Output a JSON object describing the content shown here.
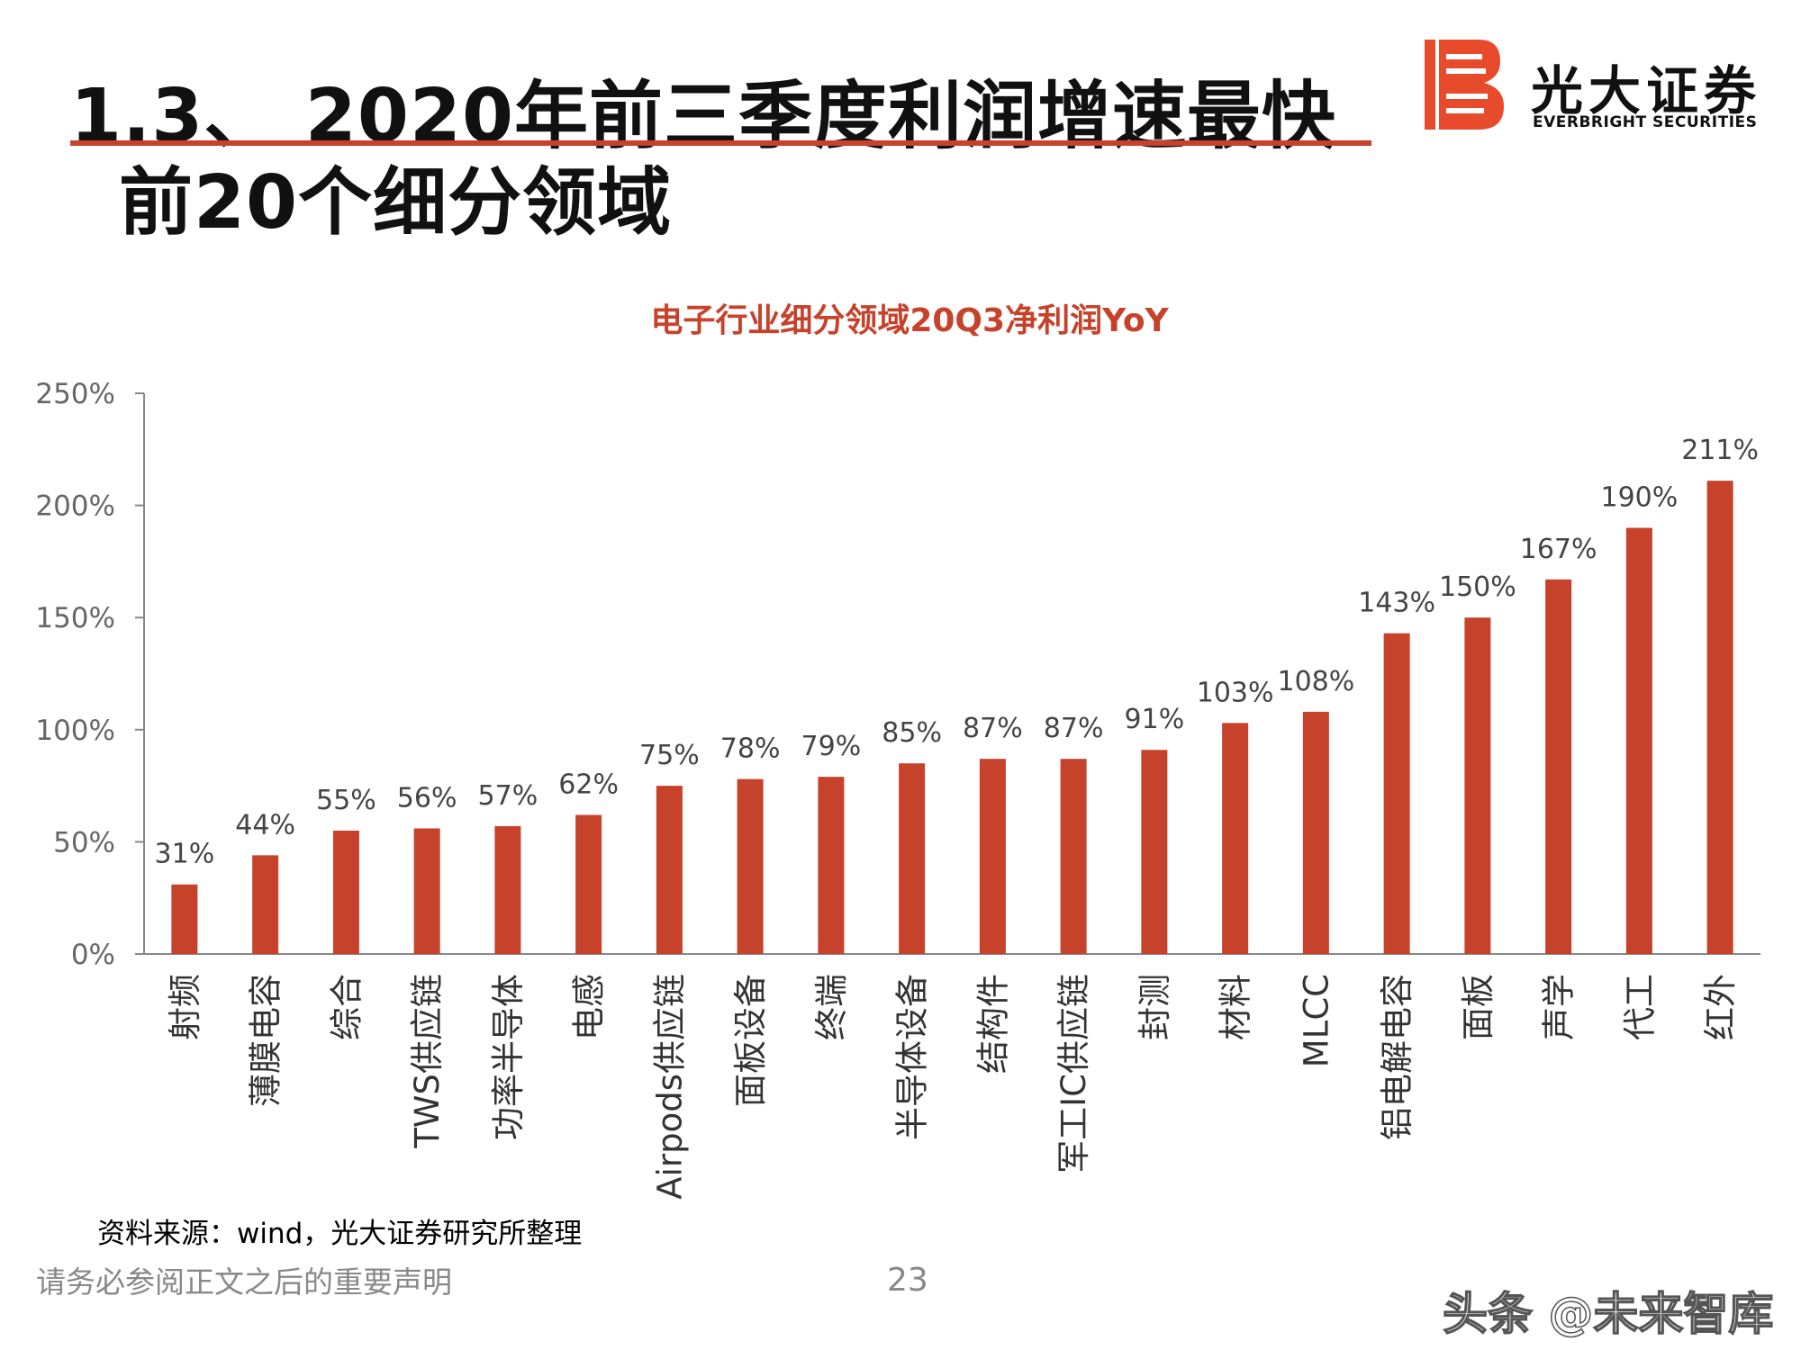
{
  "slide": {
    "title_line1": "1.3、 2020年前三季度利润增速最快",
    "title_line2": "前20个细分领域",
    "logo_cn": "光大证券",
    "logo_en": "EVERBRIGHT SECURITIES",
    "source": "资料来源：wind，光大证券研究所整理",
    "disclaimer": "请务必参阅正文之后的重要声明",
    "page_number": "23",
    "watermark": "头条 @未来智库",
    "accent_color": "#c6422a",
    "bar_color": "#c6422a"
  },
  "chart_data": {
    "type": "bar",
    "title": "电子行业细分领域20Q3净利润YoY",
    "categories": [
      "射频",
      "薄膜电容",
      "综合",
      "TWS供应链",
      "功率半导体",
      "电感",
      "Airpods供应链",
      "面板设备",
      "终端",
      "半导体设备",
      "结构件",
      "军工IC供应链",
      "封测",
      "材料",
      "MLCC",
      "铝电解电容",
      "面板",
      "声学",
      "代工",
      "红外"
    ],
    "values": [
      31,
      44,
      55,
      56,
      57,
      62,
      75,
      78,
      79,
      85,
      87,
      87,
      91,
      103,
      108,
      143,
      150,
      167,
      190,
      211
    ],
    "data_labels": [
      "31%",
      "44%",
      "55%",
      "56%",
      "57%",
      "62%",
      "75%",
      "78%",
      "79%",
      "85%",
      "87%",
      "87%",
      "91%",
      "103%",
      "108%",
      "143%",
      "150%",
      "167%",
      "190%",
      "211%"
    ],
    "y_ticks": [
      0,
      50,
      100,
      150,
      200,
      250
    ],
    "y_tick_labels": [
      "0%",
      "50%",
      "100%",
      "150%",
      "200%",
      "250%"
    ],
    "ylim": [
      0,
      250
    ],
    "grid": false,
    "legend": "none"
  }
}
